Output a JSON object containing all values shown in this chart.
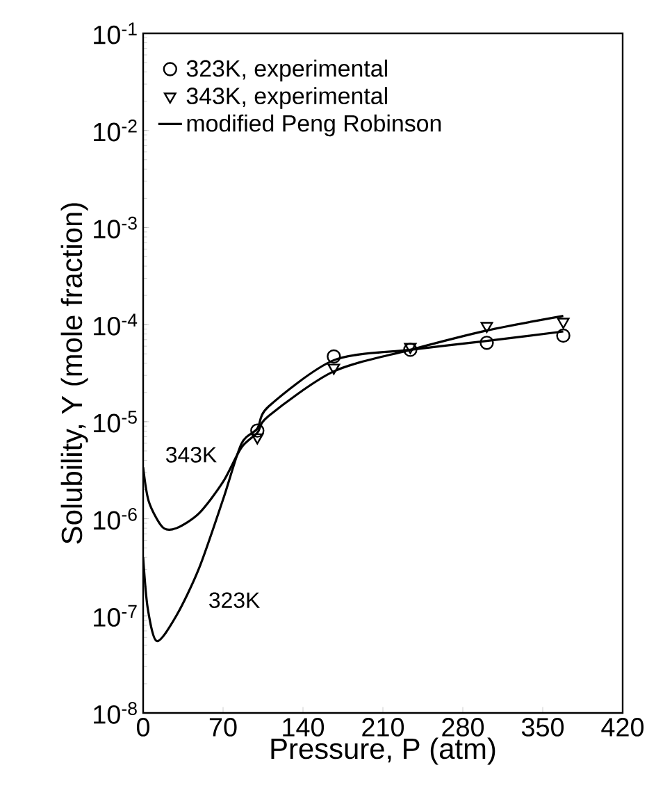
{
  "chart_data": {
    "type": "line",
    "xlabel": "Pressure, P (atm)",
    "ylabel": "Solubility, Y (mole fraction)",
    "xlim": [
      0,
      420
    ],
    "xticks": [
      0,
      70,
      140,
      210,
      280,
      350,
      420
    ],
    "ylim": [
      1e-08,
      0.1
    ],
    "yticks": [
      {
        "value": 1e-08,
        "label": "10$^{-8}$"
      },
      {
        "value": 1e-07,
        "label": "10$^{-7}$"
      },
      {
        "value": 1e-06,
        "label": "10$^{-6}$"
      },
      {
        "value": 1e-05,
        "label": "10$^{-5}$"
      },
      {
        "value": 0.0001,
        "label": "10$^{-4}$"
      },
      {
        "value": 0.001,
        "label": "10$^{-3}$"
      },
      {
        "value": 0.01,
        "label": "10$^{-2}$"
      },
      {
        "value": 0.1,
        "label": "10$^{-1}$"
      }
    ],
    "log": "y",
    "legend": "top left",
    "grid": false,
    "series": [
      {
        "name": "323K, experimental",
        "type": "scatter",
        "marker": "circle",
        "color": "#000000",
        "x": [
          100,
          167,
          234,
          301,
          368
        ],
        "values": [
          8.1e-06,
          4.7e-05,
          5.5e-05,
          6.5e-05,
          7.7e-05
        ]
      },
      {
        "name": "343K, experimental",
        "type": "scatter",
        "marker": "triangle",
        "color": "#000000",
        "x": [
          100,
          167,
          234,
          301,
          368
        ],
        "values": [
          6.9e-06,
          3.6e-05,
          5.9e-05,
          9.7e-05,
          0.000107
        ]
      },
      {
        "name": "modified Peng Robinson",
        "marker": "none",
        "line_style": "solid",
        "color": "#000000",
        "x": [
          0,
          4,
          12,
          29,
          49,
          70,
          86,
          100,
          110,
          167,
          234,
          301,
          368
        ],
        "values": [
          4e-07,
          1.2e-07,
          5.5e-08,
          1e-07,
          3.1e-07,
          1.58e-06,
          5.9e-06,
          8.5e-06,
          1.44e-05,
          4.3e-05,
          5.5e-05,
          6.8e-05,
          8.5e-05
        ]
      },
      {
        "marker": "none",
        "line_style": "solid",
        "color": "#000000",
        "x": [
          0,
          5,
          17,
          29,
          49,
          70,
          86,
          100,
          110,
          167,
          234,
          301,
          368
        ],
        "values": [
          3.4e-06,
          1.5e-06,
          8.2e-07,
          8e-07,
          1.14e-06,
          2.4e-06,
          5.4e-06,
          7.7e-06,
          1.15e-05,
          3.3e-05,
          5.5e-05,
          8.7e-05,
          0.000123
        ]
      }
    ],
    "annotations": [
      "343K",
      "323K"
    ]
  }
}
